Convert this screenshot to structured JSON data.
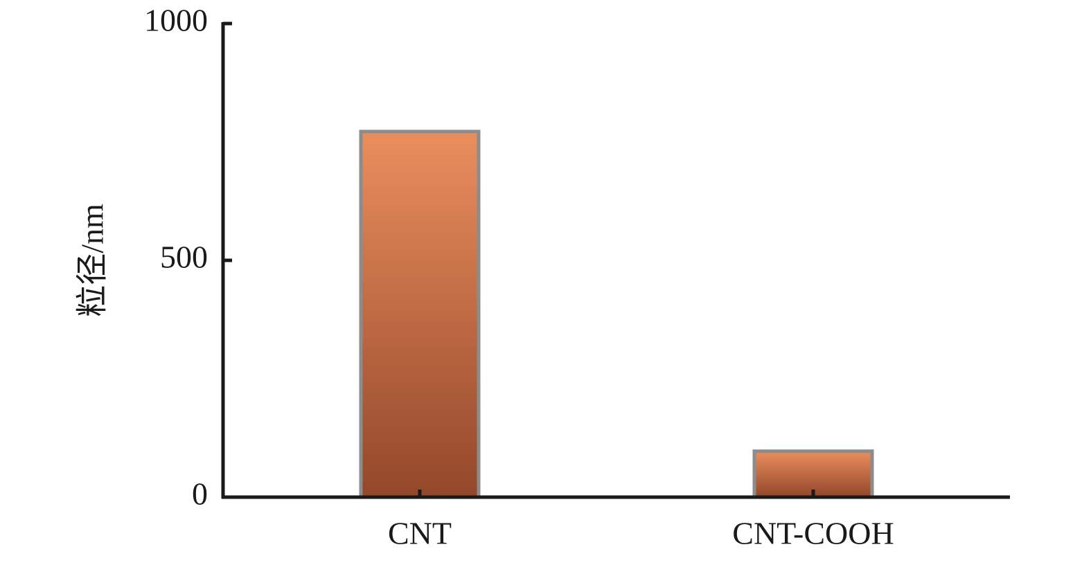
{
  "chart_data": {
    "type": "bar",
    "ylabel": "粒径/nm",
    "categories": [
      "CNT",
      "CNT-COOH"
    ],
    "values": [
      772,
      97
    ],
    "gradient": [
      "#ea8e5e",
      "#93472a"
    ],
    "edgecolor": "#8c8c8c",
    "ylim": [
      0,
      1000
    ],
    "yticks": [
      0,
      500,
      1000
    ],
    "grid": false
  }
}
